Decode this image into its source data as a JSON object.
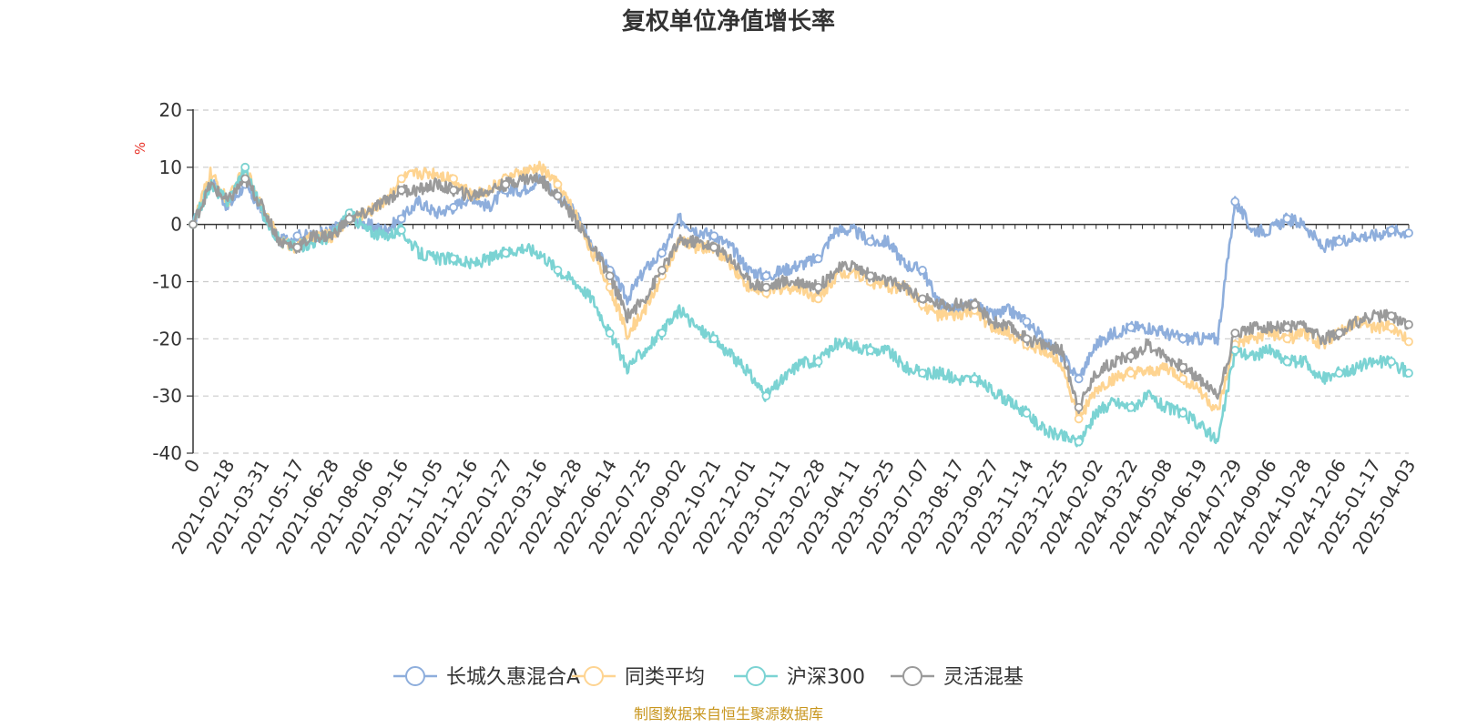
{
  "chart_data": {
    "type": "line",
    "title": "复权单位净值增长率",
    "ylabel": "%",
    "ylim": [
      -40,
      20
    ],
    "yticks": [
      20,
      10,
      0,
      -10,
      -20,
      -30,
      -40
    ],
    "x_ticks": [
      "0",
      "2021-02-18",
      "2021-03-31",
      "2021-05-17",
      "2021-06-28",
      "2021-08-06",
      "2021-09-16",
      "2021-11-05",
      "2021-12-16",
      "2022-01-27",
      "2022-03-16",
      "2022-04-28",
      "2022-06-14",
      "2022-07-25",
      "2022-09-02",
      "2022-10-21",
      "2022-12-01",
      "2023-01-11",
      "2023-02-28",
      "2023-04-11",
      "2023-05-25",
      "2023-07-07",
      "2023-08-17",
      "2023-09-27",
      "2023-11-14",
      "2023-12-25",
      "2024-02-02",
      "2024-03-22",
      "2024-05-08",
      "2024-06-19",
      "2024-07-29",
      "2024-09-06",
      "2024-10-28",
      "2024-12-06",
      "2025-01-17",
      "2025-04-03"
    ],
    "grid": "dashed horizontal",
    "legend_position": "bottom",
    "source_note": "制图数据来自恒生聚源数据库",
    "series": [
      {
        "name": "长城久惠混合A",
        "color": "#8eaedc",
        "values": [
          0,
          8,
          3,
          7,
          2,
          -3,
          -2,
          -2,
          -1,
          1,
          0,
          -1,
          1,
          4,
          2,
          3,
          5,
          3,
          6,
          6,
          8,
          5,
          2,
          -4,
          -8,
          -13,
          -8,
          -5,
          1,
          -1,
          -2,
          -4,
          -8,
          -9,
          -8,
          -7,
          -6,
          -1,
          -1,
          -3,
          -3,
          -7,
          -8,
          -14,
          -15,
          -14,
          -16,
          -15,
          -17,
          -20,
          -23,
          -27,
          -21,
          -19,
          -18,
          -18,
          -19,
          -20,
          -20,
          -20,
          4,
          -1,
          -1,
          1,
          0,
          -4,
          -3,
          -2,
          -2,
          -1,
          -1.5
        ]
      },
      {
        "name": "同类平均",
        "color": "#fed491",
        "values": [
          0,
          9,
          4,
          10,
          3,
          -3,
          -4,
          -2,
          -2,
          1,
          2,
          4,
          8,
          9,
          9,
          8,
          5,
          6,
          8,
          9,
          10,
          7,
          2,
          -5,
          -11,
          -19,
          -15,
          -9,
          -3,
          -4,
          -4,
          -7,
          -11,
          -12,
          -11,
          -11,
          -13,
          -9,
          -8,
          -10,
          -11,
          -11,
          -14,
          -16,
          -16,
          -15,
          -18,
          -19,
          -21,
          -22,
          -24,
          -34,
          -29,
          -27,
          -26,
          -26,
          -25,
          -27,
          -29,
          -33,
          -21,
          -20,
          -19,
          -20,
          -19,
          -21,
          -19,
          -17,
          -18,
          -18,
          -20.5
        ]
      },
      {
        "name": "沪深300",
        "color": "#7bd3d3",
        "values": [
          0,
          7,
          4,
          10,
          2,
          -3,
          -4,
          -3,
          -2,
          2,
          -1,
          -2,
          -1,
          -5,
          -6,
          -6,
          -7,
          -6,
          -5,
          -4,
          -5,
          -8,
          -10,
          -13,
          -19,
          -25,
          -22,
          -19,
          -15,
          -18,
          -20,
          -23,
          -26,
          -30,
          -27,
          -24,
          -24,
          -21,
          -21,
          -22,
          -22,
          -25,
          -26,
          -26,
          -27,
          -27,
          -29,
          -31,
          -33,
          -36,
          -37,
          -38,
          -33,
          -31,
          -32,
          -30,
          -32,
          -33,
          -35,
          -38,
          -22,
          -23,
          -22,
          -24,
          -24,
          -27,
          -26,
          -25,
          -24,
          -24,
          -26
        ]
      },
      {
        "name": "灵活混基",
        "color": "#9a9a9a",
        "values": [
          0,
          7,
          4,
          8,
          3,
          -3,
          -4,
          -2,
          -2,
          1,
          2,
          4,
          6,
          6,
          7,
          6,
          5,
          6,
          7,
          8,
          8,
          5,
          1,
          -4,
          -9,
          -16,
          -13,
          -8,
          -3,
          -3,
          -4,
          -6,
          -10,
          -11,
          -10,
          -10,
          -11,
          -8,
          -7,
          -9,
          -10,
          -11,
          -13,
          -14,
          -14,
          -14,
          -17,
          -18,
          -20,
          -21,
          -22,
          -32,
          -26,
          -24,
          -23,
          -21,
          -23,
          -25,
          -27,
          -30,
          -19,
          -18,
          -18,
          -18,
          -18,
          -20,
          -19,
          -17,
          -16,
          -16,
          -17.5
        ]
      }
    ]
  }
}
